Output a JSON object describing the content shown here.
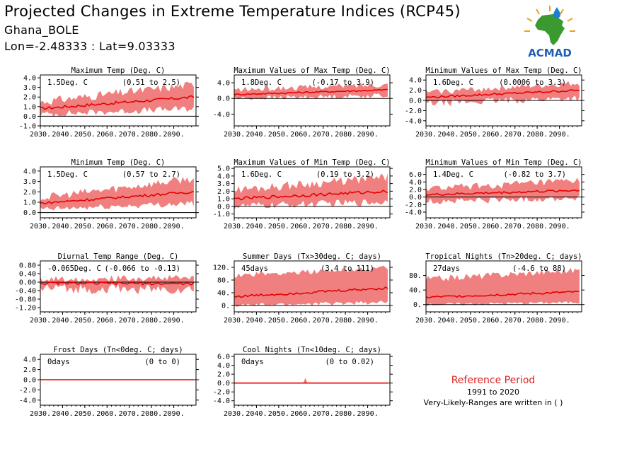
{
  "header": {
    "title": "Projected Changes in Extreme Temperature Indices (RCP45)",
    "station": "Ghana_BOLE",
    "coords": "Lon=-2.48333 : Lat=9.03333"
  },
  "logo": {
    "text": "ACMAD"
  },
  "reference": {
    "title": "Reference Period",
    "years": "1991 to 2020",
    "note": "Very-Likely-Ranges are written in ( )"
  },
  "colors": {
    "band": "#f08080",
    "line": "#e60000",
    "zero": "#000000"
  },
  "chart_data": [
    {
      "type": "line",
      "title": "Maximum Temp (Deg. C)",
      "value_label": "1.5Deg. C",
      "range_label": "(0.51 to 2.5)",
      "x": [
        2030,
        2100
      ],
      "xticks": [
        2030,
        2040,
        2050,
        2060,
        2070,
        2080,
        2090
      ],
      "xtick_labels": [
        "2030.",
        "2040.",
        "2050.",
        "2060.",
        "2070.",
        "2080.",
        "2090."
      ],
      "ylim": [
        -1,
        4.3
      ],
      "yticks": [
        -1,
        0,
        1,
        2,
        3,
        4
      ],
      "ytick_labels": [
        "-1.0",
        "0.0",
        "1.0",
        "2.0",
        "3.0",
        "4.0"
      ],
      "series": [
        {
          "role": "median",
          "start": 0.8,
          "end": 2.0,
          "jitter": 0.15
        },
        {
          "role": "band_low",
          "start": 0.2,
          "end": 0.8,
          "jitter": 0.35
        },
        {
          "role": "band_high",
          "start": 1.5,
          "end": 3.3,
          "jitter": 0.45
        }
      ]
    },
    {
      "type": "line",
      "title": "Maximum Values of Max Temp (Deg. C)",
      "value_label": "1.8Deg. C",
      "range_label": "(-0.17 to 3.9)",
      "x": [
        2030,
        2100
      ],
      "xticks": [
        2030,
        2040,
        2050,
        2060,
        2070,
        2080,
        2090
      ],
      "xtick_labels": [
        "2030.",
        "2040.",
        "2050.",
        "2060.",
        "2070.",
        "2080.",
        "2090."
      ],
      "ylim": [
        -7,
        6
      ],
      "yticks": [
        -4,
        0,
        4
      ],
      "ytick_labels": [
        "-4.0",
        "0.0",
        "4.0"
      ],
      "series": [
        {
          "role": "median",
          "start": 1.0,
          "end": 2.2,
          "jitter": 0.2
        },
        {
          "role": "band_low",
          "start": 0.0,
          "end": 0.8,
          "jitter": 0.6
        },
        {
          "role": "band_high",
          "start": 2.2,
          "end": 3.6,
          "jitter": 0.7
        }
      ]
    },
    {
      "type": "line",
      "title": "Minimum Values of Max Temp (Deg. C)",
      "value_label": "1.6Deg. C",
      "range_label": "(0.0006 to 3.3)",
      "x": [
        2030,
        2100
      ],
      "xticks": [
        2030,
        2040,
        2050,
        2060,
        2070,
        2080,
        2090
      ],
      "xtick_labels": [
        "2030.",
        "2040.",
        "2050.",
        "2060.",
        "2070.",
        "2080.",
        "2090."
      ],
      "ylim": [
        -5,
        5
      ],
      "yticks": [
        -4,
        -2,
        0,
        2,
        4
      ],
      "ytick_labels": [
        "-4.0",
        "-2.0",
        "0.0",
        "2.0",
        "4.0"
      ],
      "series": [
        {
          "role": "median",
          "start": 0.6,
          "end": 2.0,
          "jitter": 0.2
        },
        {
          "role": "band_low",
          "start": -0.6,
          "end": 0.5,
          "jitter": 0.7
        },
        {
          "role": "band_high",
          "start": 1.6,
          "end": 3.4,
          "jitter": 0.6
        }
      ]
    },
    {
      "type": "line",
      "title": "Minimum Temp (Deg. C)",
      "value_label": "1.5Deg. C",
      "range_label": "(0.57 to 2.7)",
      "x": [
        2030,
        2100
      ],
      "xticks": [
        2030,
        2040,
        2050,
        2060,
        2070,
        2080,
        2090
      ],
      "xtick_labels": [
        "2030.",
        "2040.",
        "2050.",
        "2060.",
        "2070.",
        "2080.",
        "2090."
      ],
      "ylim": [
        -0.5,
        4.4
      ],
      "yticks": [
        0,
        1,
        2,
        3,
        4
      ],
      "ytick_labels": [
        "0.0",
        "1.0",
        "2.0",
        "3.0",
        "4.0"
      ],
      "series": [
        {
          "role": "median",
          "start": 0.9,
          "end": 2.0,
          "jitter": 0.12
        },
        {
          "role": "band_low",
          "start": 0.3,
          "end": 0.9,
          "jitter": 0.3
        },
        {
          "role": "band_high",
          "start": 1.4,
          "end": 3.3,
          "jitter": 0.4
        }
      ]
    },
    {
      "type": "line",
      "title": "Maximum Values of Min Temp (Deg. C)",
      "value_label": "1.6Deg. C",
      "range_label": "(0.19 to 3.2)",
      "x": [
        2030,
        2100
      ],
      "xticks": [
        2030,
        2040,
        2050,
        2060,
        2070,
        2080,
        2090
      ],
      "xtick_labels": [
        "2030.",
        "2040.",
        "2050.",
        "2060.",
        "2070.",
        "2080.",
        "2090."
      ],
      "ylim": [
        -1.5,
        5.2
      ],
      "yticks": [
        -1,
        0,
        1,
        2,
        3,
        4,
        5
      ],
      "ytick_labels": [
        "-1.0",
        "0.0",
        "1.0",
        "2.0",
        "3.0",
        "4.0",
        "5.0"
      ],
      "series": [
        {
          "role": "median",
          "start": 1.0,
          "end": 2.0,
          "jitter": 0.2
        },
        {
          "role": "band_low",
          "start": 0.0,
          "end": 0.6,
          "jitter": 0.5
        },
        {
          "role": "band_high",
          "start": 2.2,
          "end": 3.8,
          "jitter": 0.6
        }
      ]
    },
    {
      "type": "line",
      "title": "Minimum Values of Min Temp (Deg. C)",
      "value_label": "1.4Deg. C",
      "range_label": "(-0.82 to 3.7)",
      "x": [
        2030,
        2100
      ],
      "xticks": [
        2030,
        2040,
        2050,
        2060,
        2070,
        2080,
        2090
      ],
      "xtick_labels": [
        "2030.",
        "2040.",
        "2050.",
        "2060.",
        "2070.",
        "2080.",
        "2090."
      ],
      "ylim": [
        -5.5,
        8
      ],
      "yticks": [
        -4,
        -2,
        0,
        2,
        4,
        6
      ],
      "ytick_labels": [
        "-4.0",
        "-2.0",
        "0.0",
        "2.0",
        "4.0",
        "6.0"
      ],
      "series": [
        {
          "role": "median",
          "start": 0.6,
          "end": 1.8,
          "jitter": 0.3
        },
        {
          "role": "band_low",
          "start": -1.2,
          "end": -0.2,
          "jitter": 0.9
        },
        {
          "role": "band_high",
          "start": 2.2,
          "end": 4.2,
          "jitter": 1.0
        }
      ]
    },
    {
      "type": "line",
      "title": "Diurnal Temp Range (Deg. C)",
      "value_label": "-0.065Deg. C",
      "range_label": "(-0.066 to -0.13)",
      "x": [
        2030,
        2100
      ],
      "xticks": [
        2030,
        2040,
        2050,
        2060,
        2070,
        2080,
        2090
      ],
      "xtick_labels": [
        "2030.",
        "2040.",
        "2050.",
        "2060.",
        "2070.",
        "2080.",
        "2090."
      ],
      "ylim": [
        -1.4,
        1.0
      ],
      "yticks": [
        -1.2,
        -0.8,
        -0.4,
        0,
        0.4,
        0.8
      ],
      "ytick_labels": [
        "-1.20",
        "-0.80",
        "-0.40",
        "0.00",
        "0.40",
        "0.80"
      ],
      "series": [
        {
          "role": "median",
          "start": -0.05,
          "end": -0.07,
          "jitter": 0.06
        },
        {
          "role": "band_low",
          "start": -0.3,
          "end": -0.35,
          "jitter": 0.25
        },
        {
          "role": "band_high",
          "start": 0.15,
          "end": 0.2,
          "jitter": 0.15
        }
      ]
    },
    {
      "type": "line",
      "title": "Summer Days (Tx>30deg. C; days)",
      "value_label": "45days",
      "range_label": "(3.4 to 111)",
      "x": [
        2030,
        2100
      ],
      "xticks": [
        2030,
        2040,
        2050,
        2060,
        2070,
        2080,
        2090
      ],
      "xtick_labels": [
        "2030.",
        "2040.",
        "2050.",
        "2060.",
        "2070.",
        "2080.",
        "2090."
      ],
      "ylim": [
        -20,
        140
      ],
      "yticks": [
        0,
        40,
        80,
        120
      ],
      "ytick_labels": [
        "0.",
        "40.",
        "80.",
        "120."
      ],
      "series": [
        {
          "role": "median",
          "start": 28,
          "end": 55,
          "jitter": 4
        },
        {
          "role": "band_low",
          "start": 0,
          "end": 10,
          "jitter": 6
        },
        {
          "role": "band_high",
          "start": 95,
          "end": 118,
          "jitter": 8
        }
      ]
    },
    {
      "type": "line",
      "title": "Tropical Nights (Tn>20deg. C; days)",
      "value_label": "27days",
      "range_label": "(-4.6 to 88)",
      "x": [
        2030,
        2100
      ],
      "xticks": [
        2030,
        2040,
        2050,
        2060,
        2070,
        2080,
        2090
      ],
      "xtick_labels": [
        "2030.",
        "2040.",
        "2050.",
        "2060.",
        "2070.",
        "2080.",
        "2090."
      ],
      "ylim": [
        -20,
        120
      ],
      "yticks": [
        0,
        40,
        80
      ],
      "ytick_labels": [
        "0.",
        "40.",
        "80."
      ],
      "series": [
        {
          "role": "median",
          "start": 20,
          "end": 35,
          "jitter": 3
        },
        {
          "role": "band_low",
          "start": 0,
          "end": 6,
          "jitter": 4
        },
        {
          "role": "band_high",
          "start": 70,
          "end": 95,
          "jitter": 9
        }
      ]
    },
    {
      "type": "line",
      "title": "Frost Days (Tn<0deg. C; days)",
      "value_label": "0days",
      "range_label": "(0 to 0)",
      "x": [
        2030,
        2100
      ],
      "xticks": [
        2030,
        2040,
        2050,
        2060,
        2070,
        2080,
        2090
      ],
      "xtick_labels": [
        "2030.",
        "2040.",
        "2050.",
        "2060.",
        "2070.",
        "2080.",
        "2090."
      ],
      "ylim": [
        -5,
        5
      ],
      "yticks": [
        -4,
        -2,
        0,
        2,
        4
      ],
      "ytick_labels": [
        "-4.0",
        "-2.0",
        "0.0",
        "2.0",
        "4.0"
      ],
      "series": [
        {
          "role": "median",
          "start": 0,
          "end": 0,
          "jitter": 0
        },
        {
          "role": "band_low",
          "start": 0,
          "end": 0,
          "jitter": 0
        },
        {
          "role": "band_high",
          "start": 0,
          "end": 0,
          "jitter": 0
        }
      ]
    },
    {
      "type": "line",
      "title": "Cool Nights (Tn<10deg. C; days)",
      "value_label": "0days",
      "range_label": "(0 to 0.02)",
      "x": [
        2030,
        2100
      ],
      "xticks": [
        2030,
        2040,
        2050,
        2060,
        2070,
        2080,
        2090
      ],
      "xtick_labels": [
        "2030.",
        "2040.",
        "2050.",
        "2060.",
        "2070.",
        "2080.",
        "2090."
      ],
      "ylim": [
        -5,
        6.5
      ],
      "yticks": [
        -4,
        -2,
        0,
        2,
        4,
        6
      ],
      "ytick_labels": [
        "-4.0",
        "-2.0",
        "0.0",
        "2.0",
        "4.0",
        "6.0"
      ],
      "series": [
        {
          "role": "median",
          "start": 0,
          "end": 0,
          "jitter": 0
        },
        {
          "role": "band_low",
          "start": 0,
          "end": 0,
          "jitter": 0
        },
        {
          "role": "band_high",
          "start": 0,
          "end": 0,
          "jitter": 0
        }
      ],
      "spike": {
        "x": 2062,
        "value": 1.2
      }
    }
  ]
}
